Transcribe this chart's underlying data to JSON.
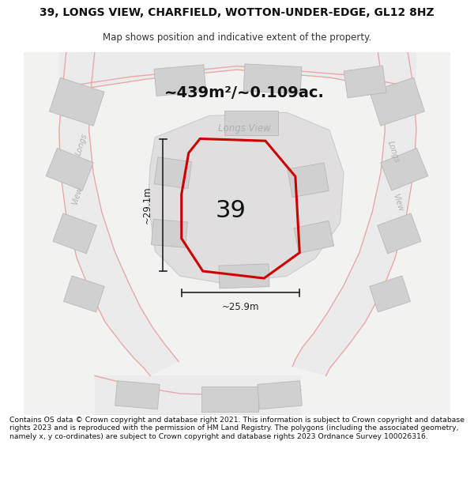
{
  "title": "39, LONGS VIEW, CHARFIELD, WOTTON-UNDER-EDGE, GL12 8HZ",
  "subtitle": "Map shows position and indicative extent of the property.",
  "footer": "Contains OS data © Crown copyright and database right 2021. This information is subject to Crown copyright and database rights 2023 and is reproduced with the permission of HM Land Registry. The polygons (including the associated geometry, namely x, y co-ordinates) are subject to Crown copyright and database rights 2023 Ordnance Survey 100026316.",
  "area_label": "~439m²/~0.109ac.",
  "width_label": "~25.9m",
  "height_label": "~29.1m",
  "property_number": "39",
  "bg_color": "#f2f2f0",
  "road_color": "#e8a8a8",
  "road_lw": 1.0,
  "building_fill": "#d0d0d0",
  "building_edge": "#b8b8b8",
  "block_fill": "#e0dede",
  "block_edge": "#cccccc",
  "road_fill": "#eeeeee",
  "plot_color": "#cc0000",
  "plot_lw": 2.2,
  "dim_color": "#222222",
  "label_color": "#aaaaaa",
  "street_label_color": "#b0b0b0"
}
